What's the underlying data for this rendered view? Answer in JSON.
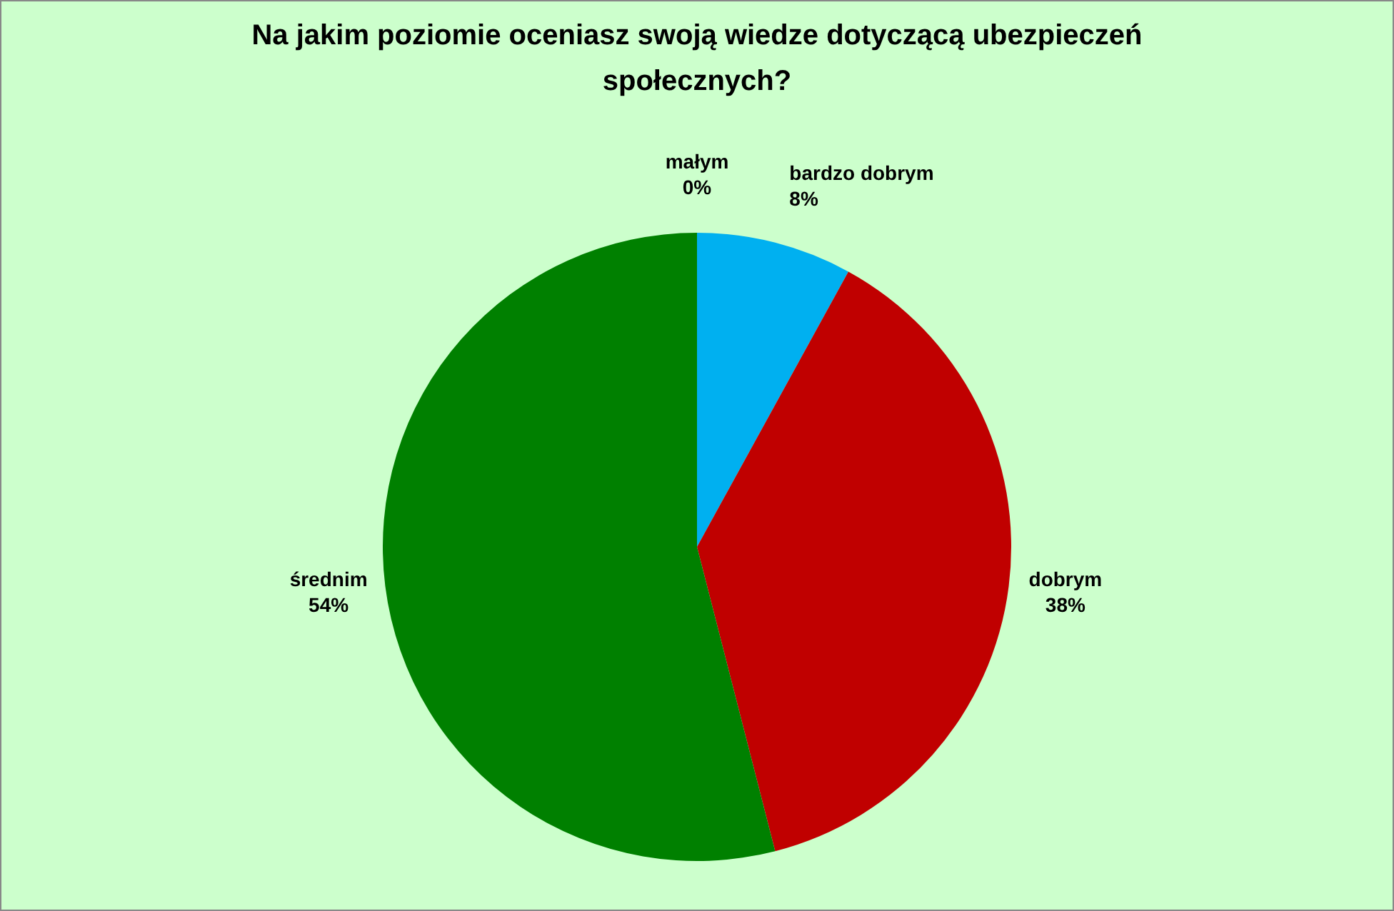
{
  "chart_data": {
    "type": "pie",
    "title": "Na jakim poziomie oceniasz swoją wiedze dotyczącą ubezpieczeń społecznych?",
    "categories": [
      "bardzo dobrym",
      "dobrym",
      "średnim",
      "małym"
    ],
    "values": [
      8,
      38,
      54,
      0
    ],
    "value_labels": [
      "8%",
      "38%",
      "54%",
      "0%"
    ],
    "colors": [
      "#00b0f0",
      "#c00000",
      "#008000",
      "#7030a0"
    ],
    "legend": false
  }
}
